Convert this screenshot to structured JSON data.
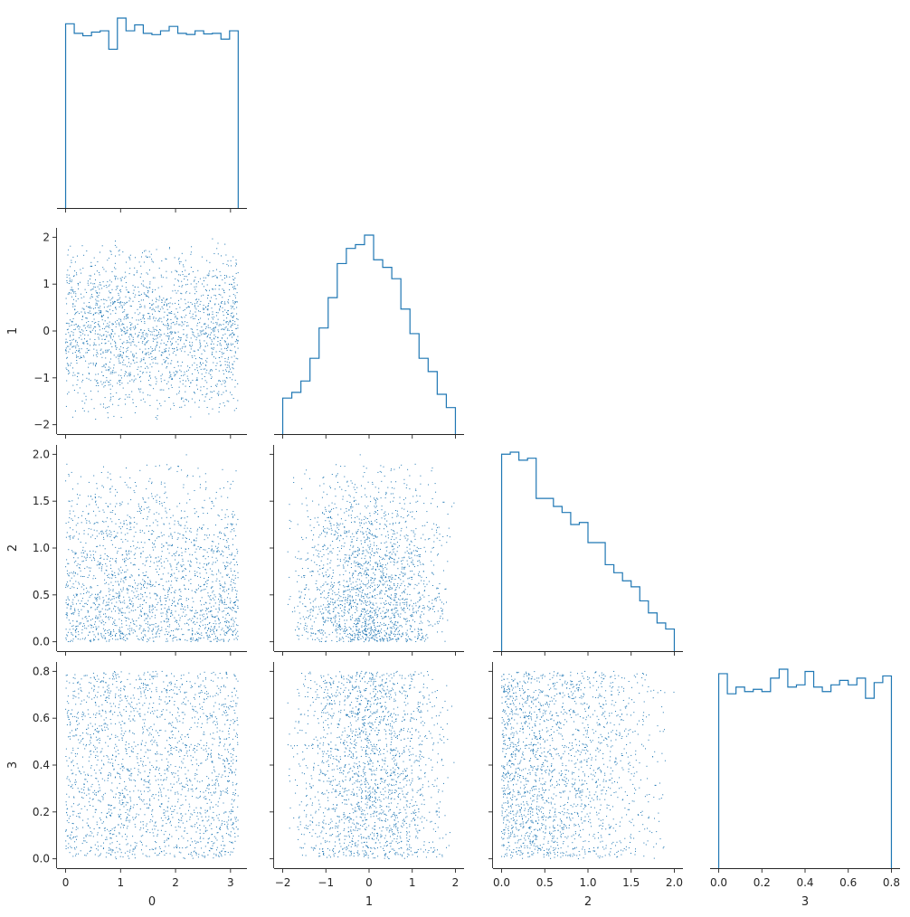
{
  "chart_data": {
    "type": "pairplot-corner",
    "variables": [
      {
        "name": "0",
        "lim": [
          -0.157,
          3.299
        ],
        "ticks": [
          0,
          1,
          2,
          3
        ],
        "tick_labels": [
          "0",
          "1",
          "2",
          "3"
        ],
        "hist_counts": [
          1.0,
          0.948,
          0.935,
          0.955,
          0.962,
          0.862,
          1.031,
          0.962,
          0.994,
          0.948,
          0.941,
          0.962,
          0.986,
          0.948,
          0.942,
          0.962,
          0.945,
          0.948,
          0.917,
          0.962
        ]
      },
      {
        "name": "1",
        "lim": [
          -2.2,
          2.2
        ],
        "ticks": [
          -2,
          -1,
          0,
          1,
          2
        ],
        "tick_labels": [
          "−2",
          "−1",
          "0",
          "1",
          "2"
        ],
        "hist_counts": [
          0.19,
          0.22,
          0.28,
          0.4,
          0.56,
          0.72,
          0.9,
          0.98,
          1.0,
          1.05,
          0.92,
          0.88,
          0.82,
          0.66,
          0.53,
          0.4,
          0.33,
          0.21,
          0.14
        ]
      },
      {
        "name": "2",
        "lim": [
          -0.1,
          2.1
        ],
        "ticks": [
          0.0,
          0.5,
          1.0,
          1.5,
          2.0
        ],
        "tick_labels": [
          "0.0",
          "0.5",
          "1.0",
          "1.5",
          "2.0"
        ],
        "hist_counts": [
          0.98,
          0.99,
          0.95,
          0.96,
          0.76,
          0.76,
          0.72,
          0.69,
          0.63,
          0.64,
          0.54,
          0.54,
          0.43,
          0.39,
          0.35,
          0.32,
          0.25,
          0.19,
          0.14,
          0.11
        ]
      },
      {
        "name": "3",
        "lim": [
          -0.04,
          0.84
        ],
        "ticks": [
          0.0,
          0.2,
          0.4,
          0.6,
          0.8
        ],
        "tick_labels": [
          "0.0",
          "0.2",
          "0.4",
          "0.6",
          "0.8"
        ],
        "hist_counts": [
          0.87,
          0.78,
          0.81,
          0.79,
          0.8,
          0.79,
          0.85,
          0.89,
          0.81,
          0.82,
          0.88,
          0.81,
          0.79,
          0.82,
          0.84,
          0.82,
          0.85,
          0.76,
          0.83,
          0.86
        ]
      }
    ],
    "y_axis_ticks": {
      "1": {
        "lim": [
          -2.2,
          2.2
        ],
        "ticks": [
          -2,
          -1,
          0,
          1,
          2
        ],
        "tick_labels": [
          "−2",
          "−1",
          "0",
          "1",
          "2"
        ]
      },
      "2": {
        "lim": [
          -0.1,
          2.1
        ],
        "ticks": [
          0.0,
          0.5,
          1.0,
          1.5,
          2.0
        ],
        "tick_labels": [
          "0.0",
          "0.5",
          "1.0",
          "1.5",
          "2.0"
        ]
      },
      "3": {
        "lim": [
          -0.04,
          0.84
        ],
        "ticks": [
          0.0,
          0.2,
          0.4,
          0.6,
          0.8
        ],
        "tick_labels": [
          "0.0",
          "0.2",
          "0.4",
          "0.6",
          "0.8"
        ]
      }
    },
    "scatter": {
      "n_points": 2000,
      "distributions": {
        "0": "uniform [0, 3.14]",
        "1": "triangular [-2, 2]",
        "2": "decreasing [0, 2]",
        "3": "uniform [0, 0.8]"
      }
    },
    "color": "#1f77b4",
    "grid": false,
    "legend": "none"
  }
}
